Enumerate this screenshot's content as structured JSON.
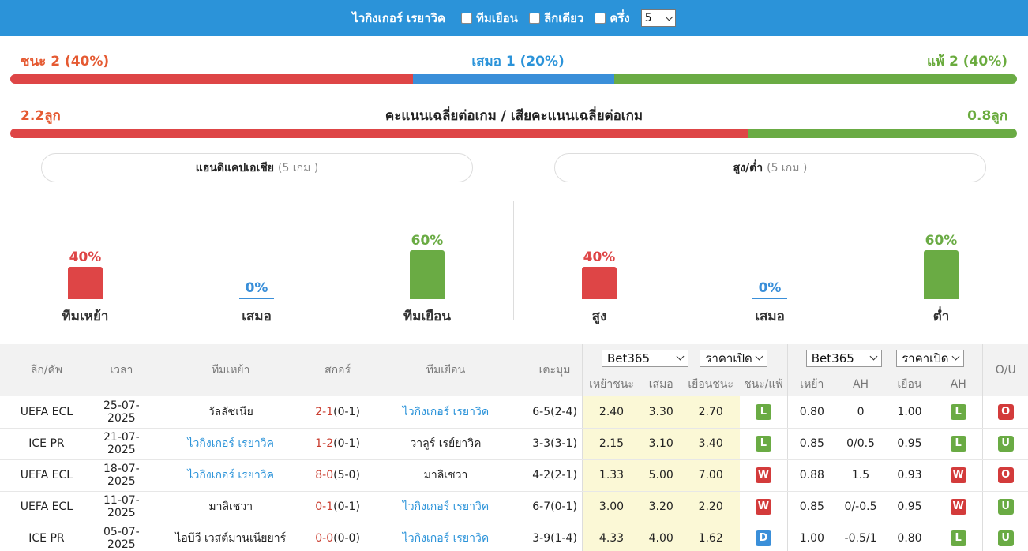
{
  "topbar": {
    "team": "ไวกิงเกอร์ เรยาวิค",
    "filters": [
      "ทีมเยือน",
      "ลีกเดียว",
      "ครึ่ง"
    ],
    "count_value": "5"
  },
  "summary": {
    "win_label": "ชนะ 2 (40%)",
    "draw_label": "เสมอ 1 (20%)",
    "loss_label": "แพ้ 2 (40%)",
    "win_pct": 40,
    "draw_pct": 20,
    "loss_pct": 40
  },
  "goals": {
    "scored": "2.2ลูก",
    "title": "คะแนนเฉลี่ยต่อเกม / เสียคะแนนเฉลี่ยต่อเกม",
    "conceded": "0.8ลูก",
    "scored_share": 73.3
  },
  "panels": {
    "handicap": {
      "title": "แฮนดิแคปเอเชีย",
      "sub": "(5 เกม )"
    },
    "ou": {
      "title": "สูง/ต่ำ",
      "sub": "(5 เกม )"
    }
  },
  "handicap_stats": [
    {
      "pct_label": "40%",
      "pct": 40,
      "label": "ทีมเหย้า",
      "color": "#de4546"
    },
    {
      "pct_label": "0%",
      "pct": 0,
      "label": "เสมอ",
      "color": "#3a8fd9"
    },
    {
      "pct_label": "60%",
      "pct": 60,
      "label": "ทีมเยือน",
      "color": "#6aab44"
    }
  ],
  "ou_stats": [
    {
      "pct_label": "40%",
      "pct": 40,
      "label": "สูง",
      "color": "#de4546"
    },
    {
      "pct_label": "0%",
      "pct": 0,
      "label": "เสมอ",
      "color": "#3a8fd9"
    },
    {
      "pct_label": "60%",
      "pct": 60,
      "label": "ต่ำ",
      "color": "#6aab44"
    }
  ],
  "table": {
    "headers": {
      "league": "ลีก/คัพ",
      "time": "เวลา",
      "home": "ทีมเหย้า",
      "score": "สกอร์",
      "away": "ทีมเยือน",
      "corner": "เตะมุม",
      "ou": "O/U",
      "bookmaker1": "Bet365",
      "price1": "ราคาเปิด",
      "bookmaker2": "Bet365",
      "price2": "ราคาเปิด",
      "sub": [
        "เหย้าชนะ",
        "เสมอ",
        "เยือนชนะ",
        "ชนะ/แพ้",
        "เหย้า",
        "AH",
        "เยือน",
        "AH"
      ]
    },
    "rows": [
      {
        "league": "UEFA ECL",
        "date": "25-07-2025",
        "home": "วัลลัซเนีย",
        "home_link": false,
        "score_main": "2-1",
        "score_ht": "(0-1)",
        "away": "ไวกิงเกอร์ เรยาวิค",
        "away_link": true,
        "corner": "6-5(2-4)",
        "h": "2.40",
        "d": "3.30",
        "a": "2.70",
        "wl": "L",
        "ah_h": "0.80",
        "ah": "0",
        "ah_a": "1.00",
        "ah_r": "L",
        "ou": "O"
      },
      {
        "league": "ICE PR",
        "date": "21-07-2025",
        "home": "ไวกิงเกอร์ เรยาวิค",
        "home_link": true,
        "score_main": "1-2",
        "score_ht": "(0-1)",
        "away": "วาลูร์ เรย์ยาวิค",
        "away_link": false,
        "corner": "3-3(3-1)",
        "h": "2.15",
        "d": "3.10",
        "a": "3.40",
        "wl": "L",
        "ah_h": "0.85",
        "ah": "0/0.5",
        "ah_a": "0.95",
        "ah_r": "L",
        "ou": "U"
      },
      {
        "league": "UEFA ECL",
        "date": "18-07-2025",
        "home": "ไวกิงเกอร์ เรยาวิค",
        "home_link": true,
        "score_main": "8-0",
        "score_ht": "(5-0)",
        "away": "มาลิเชวา",
        "away_link": false,
        "corner": "4-2(2-1)",
        "h": "1.33",
        "d": "5.00",
        "a": "7.00",
        "wl": "W",
        "ah_h": "0.88",
        "ah": "1.5",
        "ah_a": "0.93",
        "ah_r": "W",
        "ou": "O"
      },
      {
        "league": "UEFA ECL",
        "date": "11-07-2025",
        "home": "มาลิเชวา",
        "home_link": false,
        "score_main": "0-1",
        "score_ht": "(0-1)",
        "away": "ไวกิงเกอร์ เรยาวิค",
        "away_link": true,
        "corner": "6-7(0-1)",
        "h": "3.00",
        "d": "3.20",
        "a": "2.20",
        "wl": "W",
        "ah_h": "0.85",
        "ah": "0/-0.5",
        "ah_a": "0.95",
        "ah_r": "W",
        "ou": "U"
      },
      {
        "league": "ICE PR",
        "date": "05-07-2025",
        "home": "ไอบีวี เวสต์มานเนียยาร์",
        "home_link": false,
        "score_main": "0-0",
        "score_ht": "(0-0)",
        "away": "ไวกิงเกอร์ เรยาวิค",
        "away_link": true,
        "corner": "3-9(1-4)",
        "h": "4.33",
        "d": "4.00",
        "a": "1.62",
        "wl": "D",
        "ah_h": "1.00",
        "ah": "-0.5/1",
        "ah_a": "0.80",
        "ah_r": "L",
        "ou": "U"
      }
    ]
  }
}
